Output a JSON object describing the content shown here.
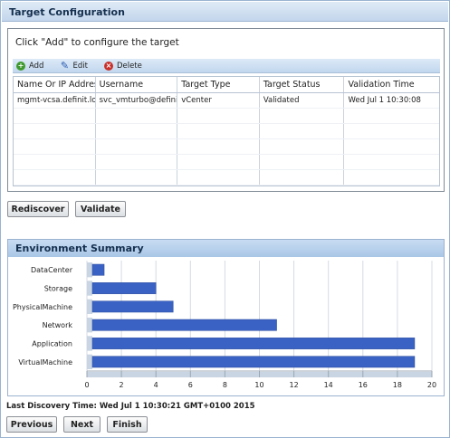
{
  "panel": {
    "title": "Target Configuration"
  },
  "config": {
    "instruction": "Click \"Add\" to configure the target",
    "toolbar": {
      "add": "Add",
      "edit": "Edit",
      "delete": "Delete"
    },
    "columns": [
      "Name Or IP Address",
      "Username",
      "Target Type",
      "Target Status",
      "Validation Time"
    ],
    "rows": [
      [
        "mgmt-vcsa.definit.local",
        "svc_vmturbo@definit.local",
        "vCenter",
        "Validated",
        "Wed Jul 1 10:30:08"
      ]
    ]
  },
  "actions": {
    "rediscover": "Rediscover",
    "validate": "Validate"
  },
  "environment": {
    "title": "Environment Summary"
  },
  "chart_data": {
    "type": "bar",
    "orientation": "horizontal",
    "categories": [
      "DataCenter",
      "Storage",
      "PhysicalMachine",
      "Network",
      "Application",
      "VirtualMachine"
    ],
    "values": [
      1,
      4,
      5,
      11,
      19,
      19
    ],
    "xlim": [
      0,
      20
    ],
    "xticks": [
      0,
      2,
      4,
      6,
      8,
      10,
      12,
      14,
      16,
      18,
      20
    ],
    "bar_color": "#3a62c4",
    "grid": true
  },
  "status": {
    "last_discovery": "Last Discovery Time: Wed Jul 1 10:30:21 GMT+0100 2015"
  },
  "nav": {
    "previous": "Previous",
    "next": "Next",
    "finish": "Finish"
  }
}
